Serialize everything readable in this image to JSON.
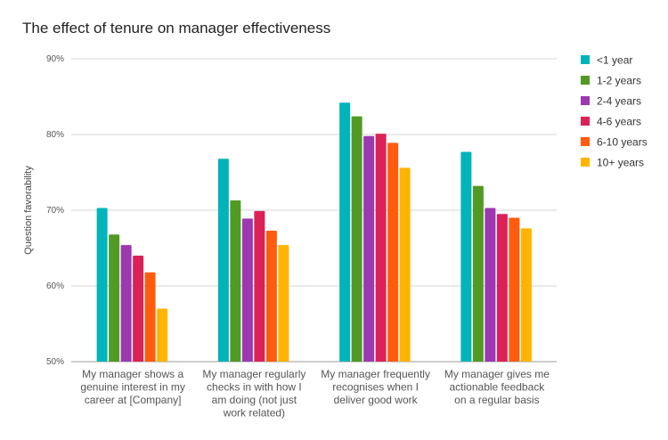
{
  "chart_data": {
    "type": "bar",
    "title": "The effect of tenure on manager effectiveness",
    "xlabel": "",
    "ylabel": "Question favorability",
    "ylim": [
      50,
      90
    ],
    "yticks": [
      "50%",
      "60%",
      "70%",
      "80%",
      "90%"
    ],
    "grid": true,
    "legend": "right",
    "categories": [
      [
        "My manager shows a",
        "genuine interest in my",
        "career at [Company]"
      ],
      [
        "My manager regularly",
        "checks in with how I",
        "am doing (not just",
        "work related)"
      ],
      [
        "My manager frequently",
        "recognises when I",
        "deliver good work"
      ],
      [
        "My manager gives me",
        "actionable feedback",
        "on a regular basis"
      ]
    ],
    "series": [
      {
        "name": "<1 year",
        "color": "#00b4b9",
        "values": [
          70.3,
          76.8,
          84.2,
          77.7
        ]
      },
      {
        "name": "1-2 years",
        "color": "#519a24",
        "values": [
          66.8,
          71.3,
          82.4,
          73.2
        ]
      },
      {
        "name": "2-4 years",
        "color": "#9c38b0",
        "values": [
          65.4,
          68.9,
          79.8,
          70.3
        ]
      },
      {
        "name": "4-6 years",
        "color": "#dc2157",
        "values": [
          64.0,
          69.9,
          80.1,
          69.5
        ]
      },
      {
        "name": "6-10 years",
        "color": "#ff5c0e",
        "values": [
          61.8,
          67.3,
          78.9,
          69.0
        ]
      },
      {
        "name": "10+ years",
        "color": "#ffb400",
        "values": [
          57.0,
          65.4,
          75.6,
          67.6
        ]
      }
    ]
  }
}
